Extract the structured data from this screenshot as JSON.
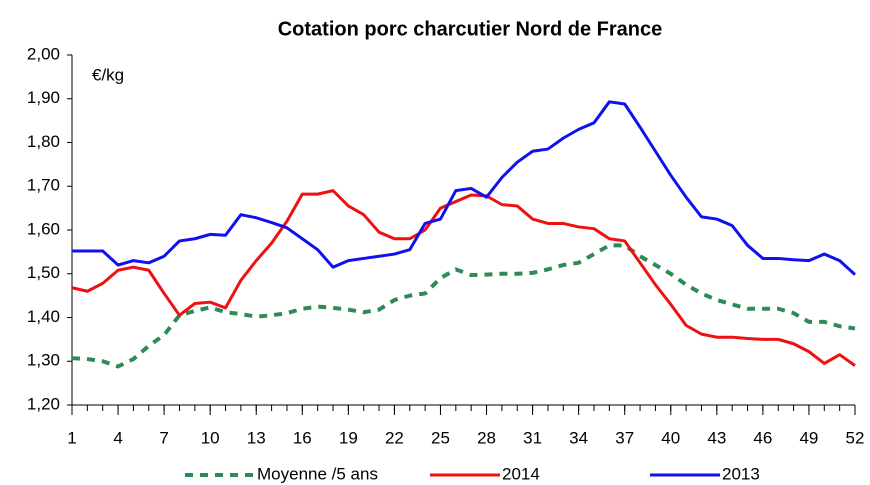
{
  "chart_data": {
    "type": "line",
    "title": "Cotation porc charcutier Nord de France",
    "y_label": "€/kg",
    "x": [
      1,
      2,
      3,
      4,
      5,
      6,
      7,
      8,
      9,
      10,
      11,
      12,
      13,
      14,
      15,
      16,
      17,
      18,
      19,
      20,
      21,
      22,
      23,
      24,
      25,
      26,
      27,
      28,
      29,
      30,
      31,
      32,
      33,
      34,
      35,
      36,
      37,
      38,
      39,
      40,
      41,
      42,
      43,
      44,
      45,
      46,
      47,
      48,
      49,
      50,
      51,
      52
    ],
    "xlim": [
      1,
      52
    ],
    "xticks": [
      1,
      4,
      7,
      10,
      13,
      16,
      19,
      22,
      25,
      28,
      31,
      34,
      37,
      40,
      43,
      46,
      49,
      52
    ],
    "ylim": [
      1.2,
      2.0
    ],
    "yticks": [
      {
        "value": 1.2,
        "label": "1,20"
      },
      {
        "value": 1.3,
        "label": "1,30"
      },
      {
        "value": 1.4,
        "label": "1,40"
      },
      {
        "value": 1.5,
        "label": "1,50"
      },
      {
        "value": 1.6,
        "label": "1,60"
      },
      {
        "value": 1.7,
        "label": "1,70"
      },
      {
        "value": 1.8,
        "label": "1,80"
      },
      {
        "value": 1.9,
        "label": "1,90"
      },
      {
        "value": 2.0,
        "label": "2,00"
      }
    ],
    "legend": "bottom",
    "series": [
      {
        "name": "Moyenne /5 ans",
        "color": "#2e8b57",
        "dashed": true,
        "values": [
          1.307,
          1.305,
          1.3,
          1.288,
          1.305,
          1.335,
          1.36,
          1.405,
          1.415,
          1.423,
          1.412,
          1.408,
          1.402,
          1.405,
          1.41,
          1.42,
          1.425,
          1.422,
          1.418,
          1.412,
          1.418,
          1.44,
          1.45,
          1.455,
          1.49,
          1.51,
          1.497,
          1.498,
          1.5,
          1.5,
          1.502,
          1.51,
          1.52,
          1.525,
          1.545,
          1.565,
          1.565,
          1.54,
          1.52,
          1.5,
          1.475,
          1.455,
          1.44,
          1.43,
          1.42,
          1.42,
          1.42,
          1.41,
          1.39,
          1.39,
          1.38,
          1.375
        ]
      },
      {
        "name": "2014",
        "color": "#ee1111",
        "values": [
          1.468,
          1.46,
          1.478,
          1.508,
          1.515,
          1.508,
          1.455,
          1.405,
          1.432,
          1.435,
          1.422,
          1.485,
          1.53,
          1.57,
          1.62,
          1.682,
          1.682,
          1.69,
          1.655,
          1.635,
          1.595,
          1.58,
          1.58,
          1.6,
          1.65,
          1.665,
          1.68,
          1.678,
          1.658,
          1.655,
          1.625,
          1.615,
          1.615,
          1.607,
          1.603,
          1.58,
          1.575,
          1.525,
          1.475,
          1.43,
          1.382,
          1.362,
          1.355,
          1.355,
          1.352,
          1.35,
          1.35,
          1.34,
          1.322,
          1.295,
          1.315,
          1.29
        ]
      },
      {
        "name": "2013",
        "color": "#1111ee",
        "values": [
          1.552,
          1.552,
          1.552,
          1.52,
          1.53,
          1.525,
          1.54,
          1.575,
          1.58,
          1.59,
          1.588,
          1.635,
          1.628,
          1.617,
          1.605,
          1.58,
          1.555,
          1.515,
          1.53,
          1.535,
          1.54,
          1.545,
          1.555,
          1.615,
          1.625,
          1.69,
          1.695,
          1.675,
          1.72,
          1.755,
          1.78,
          1.785,
          1.81,
          1.83,
          1.845,
          1.893,
          1.888,
          1.835,
          1.78,
          1.725,
          1.675,
          1.63,
          1.625,
          1.61,
          1.565,
          1.535,
          1.535,
          1.532,
          1.53,
          1.545,
          1.53,
          1.498
        ]
      }
    ]
  }
}
